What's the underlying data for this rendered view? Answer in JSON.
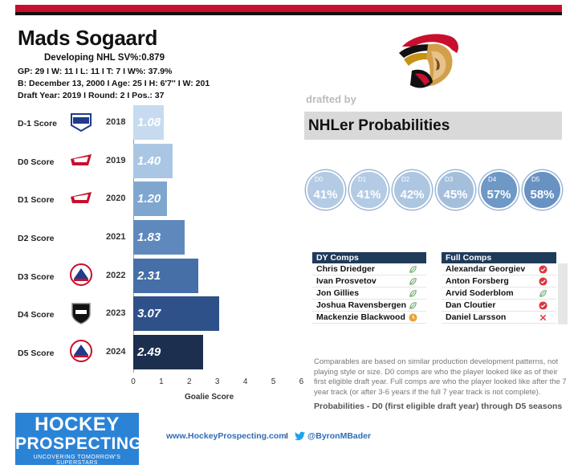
{
  "player": {
    "name": "Mads Sogaard",
    "line1": "Developing  NHL SV%:0.879",
    "line2": "GP: 29 I W: 11 I L: 11  I T: 7  I W%: 37.9%",
    "line3": "B: December 13, 2000 I  Age: 25 I H: 6'7'' I W: 201",
    "line4": "Draft Year: 2019 I Round: 2 I Pos.: 37"
  },
  "team_logo": "ottawa-senators-logo",
  "drafted_by": "drafted by",
  "probabilities": {
    "title": "NHLer Probabilities",
    "items": [
      {
        "label": "D0",
        "value": "41%",
        "color": "#b3cbe4"
      },
      {
        "label": "D1",
        "value": "41%",
        "color": "#b3cbe4"
      },
      {
        "label": "D2",
        "value": "42%",
        "color": "#adc6e1"
      },
      {
        "label": "D3",
        "value": "45%",
        "color": "#a4bfdc"
      },
      {
        "label": "D4",
        "value": "57%",
        "color": "#6e98c6"
      },
      {
        "label": "D5",
        "value": "58%",
        "color": "#6892c2"
      }
    ]
  },
  "scores": {
    "rows": [
      {
        "label": "D-1 Score",
        "year": "2018",
        "value": "1.08",
        "num": 1.08,
        "league": "NAHL",
        "color": "#c6dbef"
      },
      {
        "label": "D0 Score",
        "year": "2019",
        "value": "1.40",
        "num": 1.4,
        "league": "WHL",
        "color": "#a9c7e3"
      },
      {
        "label": "D1 Score",
        "year": "2020",
        "value": "1.20",
        "num": 1.2,
        "league": "WHL",
        "color": "#7fa6cf"
      },
      {
        "label": "D2  Score",
        "year": "2021",
        "value": "1.83",
        "num": 1.83,
        "league": "",
        "color": "#5f89bd"
      },
      {
        "label": "D3 Score",
        "year": "2022",
        "value": "2.31",
        "num": 2.31,
        "league": "AHL",
        "color": "#456fa6"
      },
      {
        "label": "D4  Score",
        "year": "2023",
        "value": "3.07",
        "num": 3.07,
        "league": "NHL",
        "color": "#2f5189"
      },
      {
        "label": "D5 Score",
        "year": "2024",
        "value": "2.49",
        "num": 2.49,
        "league": "AHL",
        "color": "#1c2f4f"
      }
    ],
    "ticks": [
      "0",
      "1",
      "2",
      "3",
      "4",
      "5",
      "6"
    ],
    "xlabel": "Goalie Score"
  },
  "dy_comps": {
    "header": "DY Comps",
    "rows": [
      {
        "name": "Chris Driedger",
        "icon": "leaf-icon"
      },
      {
        "name": "Ivan Prosvetov",
        "icon": "leaf-icon"
      },
      {
        "name": "Jon Gillies",
        "icon": "leaf-icon"
      },
      {
        "name": "Joshua Ravensbergen",
        "icon": "leaf-icon"
      },
      {
        "name": "Mackenzie Blackwood",
        "icon": "clock-icon"
      }
    ]
  },
  "full_comps": {
    "header": "Full Comps",
    "rows": [
      {
        "name": "Alexandar Georgiev",
        "icon": "check-icon"
      },
      {
        "name": "Anton Forsberg",
        "icon": "check-icon"
      },
      {
        "name": "Arvid Soderblom",
        "icon": "leaf-icon"
      },
      {
        "name": "Dan Cloutier",
        "icon": "check-icon"
      },
      {
        "name": "Daniel Larsson",
        "icon": "x-icon"
      }
    ]
  },
  "note": "Comparables are based on similar production development patterns, not playing style or size. D0 comps are who the player looked like as of their first eligible draft year. Full comps are who the player looked like after the 7 year track (or after 3-6 years if the full 7 year track is not complete).",
  "prob_note": "Probabilities - D0 (first eligible draft year) through D5 seasons",
  "brand": {
    "line1": "HOCKEY",
    "line2": "PROSPECTING",
    "tagline": "UNCOVERING TOMORROW'S SUPERSTARS",
    "website": "www.HockeyProspecting.com",
    "separator": "I",
    "twitter": "@ByronMBader"
  }
}
